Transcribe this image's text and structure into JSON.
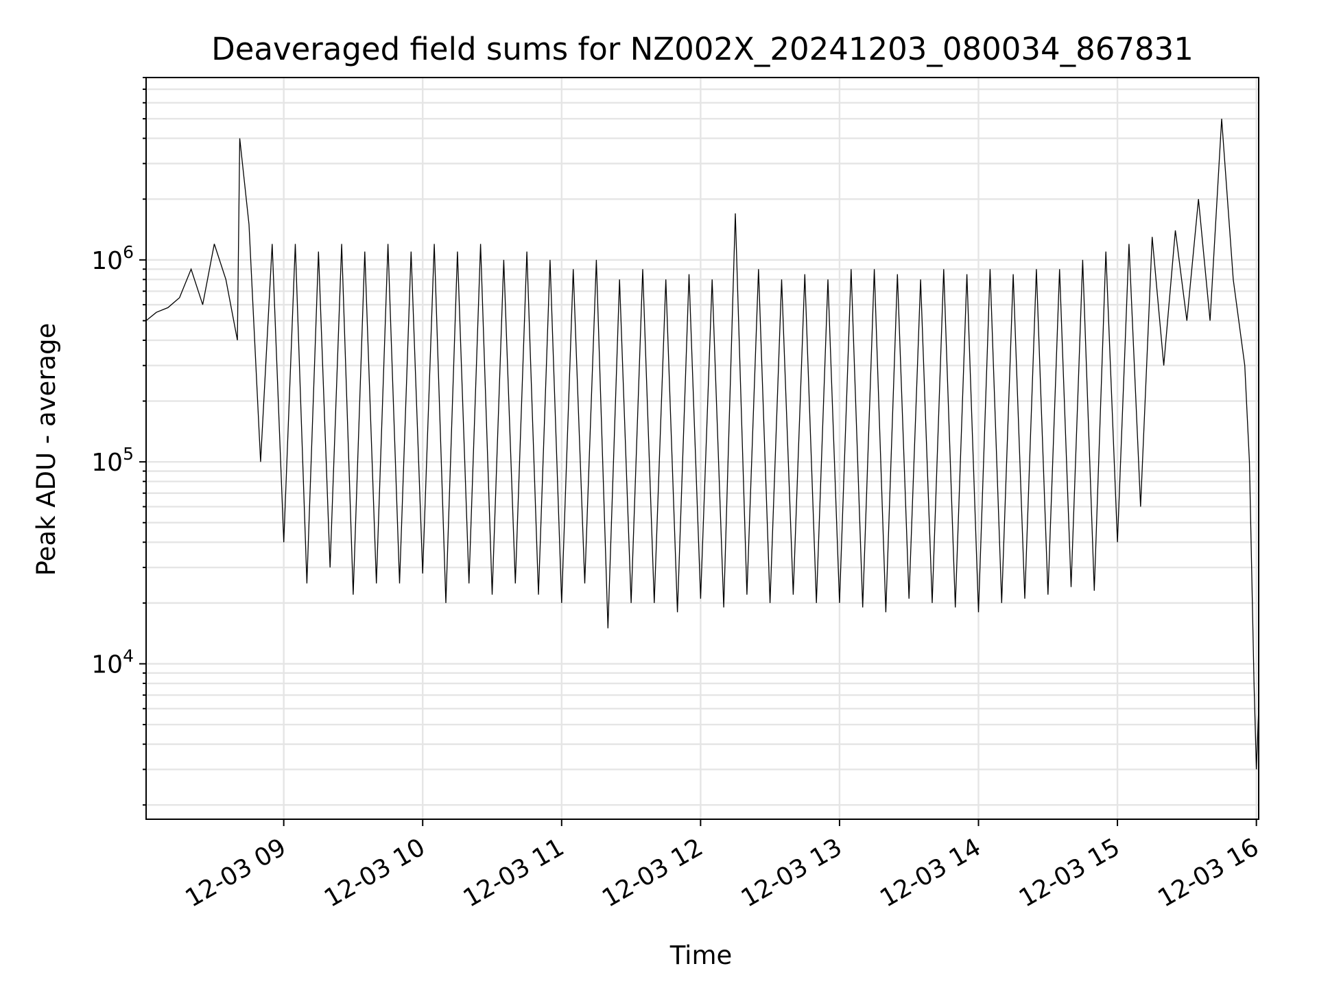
{
  "chart_data": {
    "type": "line",
    "title": "Deaveraged field sums for NZ002X_20241203_080034_867831",
    "xlabel": "Time",
    "ylabel": "Peak ADU - average",
    "yscale": "log",
    "xlim": [
      "2024-12-03T08:00:34",
      "2024-12-03T16:01:00"
    ],
    "ylim": [
      1700,
      8000000
    ],
    "x_ticks": [
      "12-03 09",
      "12-03 10",
      "12-03 11",
      "12-03 12",
      "12-03 13",
      "12-03 14",
      "12-03 15",
      "12-03 16"
    ],
    "y_ticks": [
      {
        "value": 10000,
        "base": "10",
        "exp": "4"
      },
      {
        "value": 100000,
        "base": "10",
        "exp": "5"
      },
      {
        "value": 1000000,
        "base": "10",
        "exp": "6"
      }
    ],
    "grid": true,
    "line_color": "#000000",
    "series": [
      {
        "x": [
          "08:00",
          "08:05",
          "08:10",
          "08:15",
          "08:20",
          "08:25",
          "08:30",
          "08:35",
          "08:40",
          "08:41",
          "08:45",
          "08:50",
          "08:55",
          "09:00",
          "09:05",
          "09:10",
          "09:15",
          "09:20",
          "09:25",
          "09:30",
          "09:35",
          "09:40",
          "09:45",
          "09:50",
          "09:55",
          "10:00",
          "10:05",
          "10:10",
          "10:15",
          "10:20",
          "10:25",
          "10:30",
          "10:35",
          "10:40",
          "10:45",
          "10:50",
          "10:55",
          "11:00",
          "11:05",
          "11:10",
          "11:15",
          "11:20",
          "11:25",
          "11:30",
          "11:35",
          "11:40",
          "11:45",
          "11:50",
          "11:55",
          "12:00",
          "12:05",
          "12:10",
          "12:15",
          "12:20",
          "12:25",
          "12:30",
          "12:35",
          "12:40",
          "12:45",
          "12:50",
          "12:55",
          "13:00",
          "13:05",
          "13:10",
          "13:15",
          "13:20",
          "13:25",
          "13:30",
          "13:35",
          "13:40",
          "13:45",
          "13:50",
          "13:55",
          "14:00",
          "14:05",
          "14:10",
          "14:15",
          "14:20",
          "14:25",
          "14:30",
          "14:35",
          "14:40",
          "14:45",
          "14:50",
          "14:55",
          "15:00",
          "15:05",
          "15:10",
          "15:15",
          "15:20",
          "15:25",
          "15:30",
          "15:35",
          "15:40",
          "15:45",
          "15:50",
          "15:55",
          "15:57",
          "15:59",
          "16:00",
          "16:01"
        ],
        "y": [
          500000,
          550000,
          580000,
          650000,
          900000,
          600000,
          1200000,
          800000,
          400000,
          4000000,
          1500000,
          100000,
          1200000,
          40000,
          1200000,
          25000,
          1100000,
          30000,
          1200000,
          22000,
          1100000,
          25000,
          1200000,
          25000,
          1100000,
          28000,
          1200000,
          20000,
          1100000,
          25000,
          1200000,
          22000,
          1000000,
          25000,
          1100000,
          22000,
          1000000,
          20000,
          900000,
          25000,
          1000000,
          15000,
          800000,
          20000,
          900000,
          20000,
          800000,
          18000,
          850000,
          21000,
          800000,
          19000,
          1700000,
          22000,
          900000,
          20000,
          800000,
          22000,
          850000,
          20000,
          800000,
          20000,
          900000,
          19000,
          900000,
          18000,
          850000,
          21000,
          800000,
          20000,
          900000,
          19000,
          850000,
          18000,
          900000,
          20000,
          850000,
          21000,
          900000,
          22000,
          900000,
          24000,
          1000000,
          23000,
          1100000,
          40000,
          1200000,
          60000,
          1300000,
          300000,
          1400000,
          500000,
          2000000,
          500000,
          5000000,
          800000,
          300000,
          100000,
          8000,
          3000,
          6000
        ]
      }
    ]
  }
}
